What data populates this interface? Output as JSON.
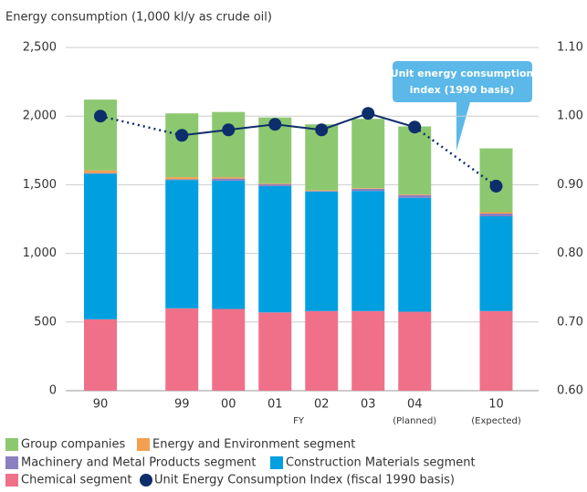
{
  "chart_data": {
    "type": "bar",
    "y_label": "Energy consumption (1,000 kl/y as crude oil)",
    "x_label": "FY",
    "categories": [
      "90",
      "99",
      "00",
      "01",
      "02",
      "03",
      "04",
      "10"
    ],
    "category_notes": [
      null,
      null,
      null,
      null,
      null,
      null,
      "(Planned)",
      "(Expected)"
    ],
    "stacked": true,
    "series": [
      {
        "name": "Chemical segment",
        "color": "#f0708a",
        "values": [
          520,
          600,
          595,
          570,
          580,
          580,
          575,
          580
        ]
      },
      {
        "name": "Construction Materials segment",
        "color": "#00a0e0",
        "values": [
          1060,
          935,
          935,
          920,
          870,
          875,
          830,
          690
        ]
      },
      {
        "name": "Machinery and Metal Products segment",
        "color": "#8b7fc0",
        "values": [
          5,
          5,
          15,
          15,
          5,
          15,
          20,
          20
        ]
      },
      {
        "name": "Energy and Environment segment",
        "color": "#f5a050",
        "values": [
          20,
          15,
          10,
          5,
          5,
          5,
          5,
          10
        ]
      },
      {
        "name": "Group companies",
        "color": "#8cc870",
        "values": [
          515,
          465,
          475,
          480,
          480,
          505,
          495,
          465
        ]
      },
      {
        "name": "Unit Energy Consumption Index (fiscal 1990 basis)",
        "color": "#0d2d6b",
        "type": "line",
        "axis": "y2",
        "values": [
          1.0,
          0.972,
          0.98,
          0.988,
          0.98,
          1.004,
          0.984,
          0.898
        ]
      }
    ],
    "ylim": [
      0,
      2500
    ],
    "yticks": [
      0,
      500,
      {
        "value": 1000,
        "label": "1,000"
      },
      {
        "value": 1500,
        "label": "1,500"
      },
      {
        "value": 2000,
        "label": "2,000"
      },
      {
        "value": 2500,
        "label": "2,500"
      }
    ],
    "y2lim": [
      0.6,
      1.1
    ],
    "y2ticks": [
      {
        "value": 0.6,
        "label": "0.60"
      },
      {
        "value": 0.7,
        "label": "0.70"
      },
      {
        "value": 0.8,
        "label": "0.80"
      },
      {
        "value": 0.9,
        "label": "0.90"
      },
      {
        "value": 1.0,
        "label": "1.00"
      },
      {
        "value": 1.1,
        "label": "1.10"
      }
    ],
    "grid": true,
    "annotation": [
      "Unit energy consumption",
      "index (1990 basis)"
    ]
  }
}
